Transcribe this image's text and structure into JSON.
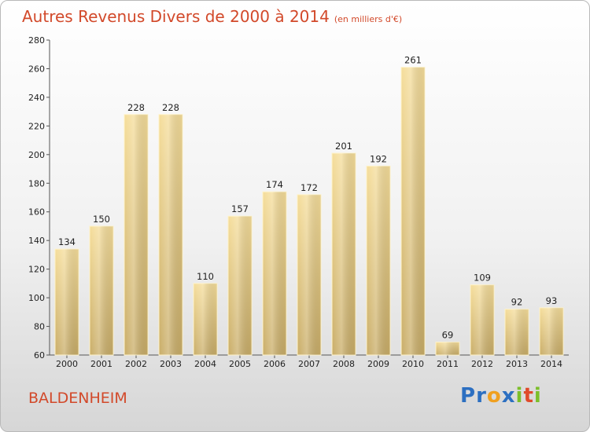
{
  "title": "Autres Revenus Divers de 2000 à 2014",
  "subtitle": "(en milliers d'€)",
  "commune": "BALDENHEIM",
  "logo": {
    "letters": [
      "P",
      "r",
      "o",
      "x",
      "i",
      "t",
      "i"
    ],
    "colors": [
      "#2c6fc1",
      "#2c6fc1",
      "#f0a020",
      "#2c6fc1",
      "#7cbf2a",
      "#e04a2a",
      "#7cbf2a"
    ]
  },
  "colors": {
    "bar_top": "#f5dd9a",
    "bar_bottom": "#c9ad68",
    "title": "#d2492a"
  },
  "chart_data": {
    "type": "bar",
    "title": "Autres Revenus Divers de 2000 à 2014",
    "categories": [
      "2000",
      "2001",
      "2002",
      "2003",
      "2004",
      "2005",
      "2006",
      "2007",
      "2008",
      "2009",
      "2010",
      "2011",
      "2012",
      "2013",
      "2014"
    ],
    "values": [
      134,
      150,
      228,
      228,
      110,
      157,
      174,
      172,
      201,
      192,
      261,
      69,
      109,
      92,
      93
    ],
    "ylim": [
      60,
      280
    ],
    "yticks": [
      60,
      80,
      100,
      120,
      140,
      160,
      180,
      200,
      220,
      240,
      260,
      280
    ],
    "grid": false,
    "legend": "none"
  }
}
